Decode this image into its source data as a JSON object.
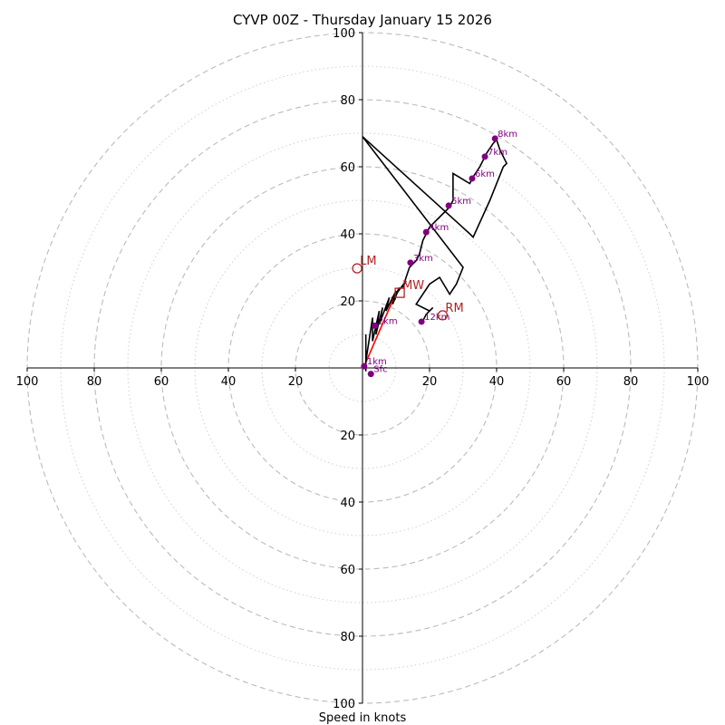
{
  "chart_data": {
    "type": "line",
    "subtype": "hodograph",
    "title": "CYVP 00Z - Thursday January 15 2026",
    "xlabel": "Speed in knots",
    "axis_range_knots": [
      -100,
      100
    ],
    "ring_major_knots": [
      20,
      40,
      60,
      80,
      100
    ],
    "ring_minor_knots": [
      10,
      30,
      50,
      70,
      90
    ],
    "tick_labels": {
      "top": [
        "20",
        "40",
        "60",
        "80",
        "100"
      ],
      "bottom": [
        "20",
        "40",
        "60",
        "80",
        "100"
      ],
      "left": [
        "20",
        "40",
        "60",
        "80",
        "100"
      ],
      "right": [
        "20",
        "40",
        "60",
        "80",
        "100"
      ]
    },
    "series": [
      {
        "name": "hodograph",
        "color": "#000000",
        "points_uv": [
          [
            1,
            -1
          ],
          [
            1,
            10
          ],
          [
            1,
            2
          ],
          [
            3,
            15
          ],
          [
            3,
            8
          ],
          [
            5,
            17
          ],
          [
            4,
            10
          ],
          [
            6,
            18
          ],
          [
            5,
            13
          ],
          [
            8,
            21
          ],
          [
            7,
            17
          ],
          [
            10,
            23
          ],
          [
            9,
            19
          ],
          [
            11,
            24
          ],
          [
            10,
            22
          ],
          [
            13,
            26
          ],
          [
            12,
            24
          ],
          [
            14,
            30
          ],
          [
            16,
            32
          ],
          [
            17,
            34
          ],
          [
            18,
            38
          ],
          [
            20,
            42
          ],
          [
            23,
            45
          ],
          [
            26,
            48
          ],
          [
            27,
            50
          ],
          [
            27,
            58
          ],
          [
            32,
            55
          ],
          [
            33,
            57
          ],
          [
            35,
            60
          ],
          [
            37,
            64
          ],
          [
            39,
            67
          ],
          [
            40,
            68
          ],
          [
            41,
            65
          ],
          [
            43,
            61
          ],
          [
            42,
            60
          ],
          [
            38,
            50
          ],
          [
            33,
            39
          ],
          [
            32,
            40
          ],
          [
            0,
            69
          ],
          [
            30,
            30
          ],
          [
            28,
            25
          ],
          [
            26,
            22
          ],
          [
            23,
            27
          ],
          [
            20,
            25
          ],
          [
            16,
            19
          ],
          [
            20,
            17
          ],
          [
            21,
            18
          ],
          [
            19,
            16
          ],
          [
            18,
            14
          ]
        ]
      }
    ],
    "height_markers": [
      {
        "label": "Sfc",
        "u": 2.5,
        "v": -1.8
      },
      {
        "label": "1km",
        "u": 0.5,
        "v": 0.5
      },
      {
        "label": "2km",
        "u": 3.7,
        "v": 12.6
      },
      {
        "label": "3km",
        "u": 14.3,
        "v": 31.4
      },
      {
        "label": "4km",
        "u": 19,
        "v": 40.5
      },
      {
        "label": "5km",
        "u": 25.7,
        "v": 48.4
      },
      {
        "label": "6km",
        "u": 32.7,
        "v": 56.5
      },
      {
        "label": "7km",
        "u": 36.5,
        "v": 63
      },
      {
        "label": "8km",
        "u": 39.5,
        "v": 68.4
      },
      {
        "label": "12km",
        "u": 17.6,
        "v": 13.8
      }
    ],
    "motion_markers": [
      {
        "label": "LM",
        "u": -1.6,
        "v": 29.7,
        "shape": "circle"
      },
      {
        "label": "RM",
        "u": 23.9,
        "v": 15.7,
        "shape": "circle"
      },
      {
        "label": "MW",
        "u": 11.1,
        "v": 22.4,
        "shape": "square"
      }
    ],
    "mean_wind_arrow": {
      "from": [
        0.5,
        0.5
      ],
      "to": [
        10,
        22.4
      ],
      "color": "#ff0000"
    },
    "colors": {
      "hodo": "#000000",
      "markers": "#800080",
      "motion": "#b22222",
      "rings": "#bbbbbb",
      "arrow": "#ff0000"
    }
  }
}
